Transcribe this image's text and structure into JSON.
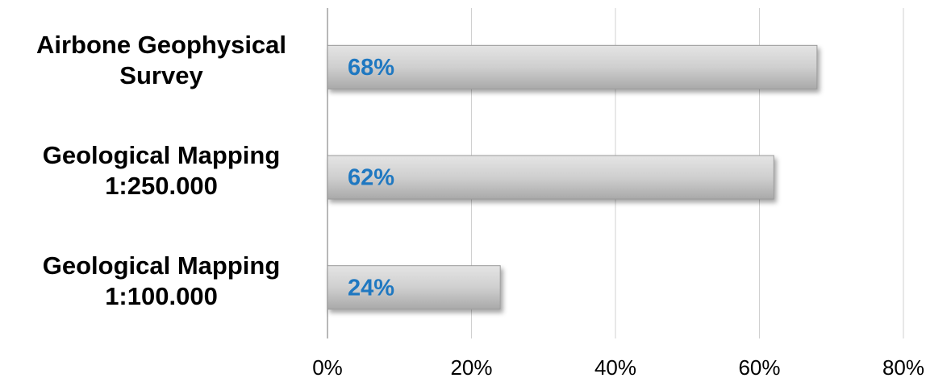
{
  "chart_data": {
    "type": "bar",
    "orientation": "horizontal",
    "categories": [
      "Airbone Geophysical Survey",
      "Geological Mapping 1:250.000",
      "Geological Mapping 1:100.000"
    ],
    "values": [
      68,
      62,
      24
    ],
    "value_labels": [
      "68%",
      "62%",
      "24%"
    ],
    "color": "#c8c8c8",
    "label_color": "#1f78c1",
    "xlim": [
      0,
      80
    ],
    "xticks": [
      {
        "value": 0,
        "label": "0%"
      },
      {
        "value": 20,
        "label": "20%"
      },
      {
        "value": 40,
        "label": "40%"
      },
      {
        "value": 60,
        "label": "60%"
      },
      {
        "value": 80,
        "label": "80%"
      }
    ],
    "grid": true
  }
}
